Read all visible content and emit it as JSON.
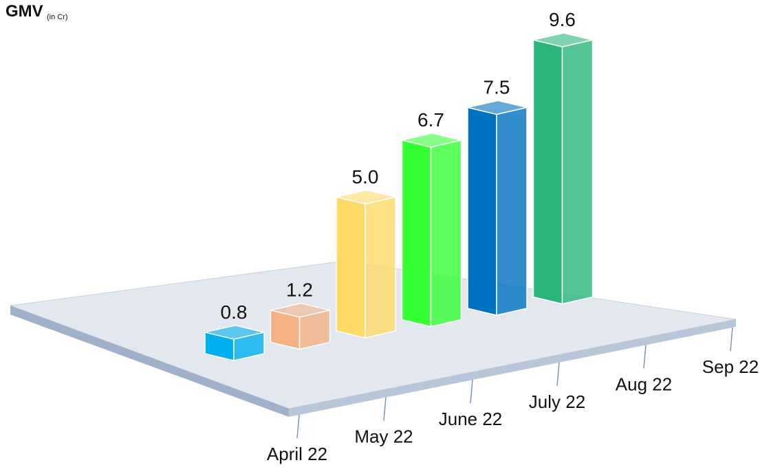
{
  "chart_data": {
    "type": "bar3d",
    "title": "GMV",
    "subtitle": "(in Cr)",
    "categories": [
      "April 22",
      "May 22",
      "June 22",
      "July 22",
      "Aug 22",
      "Sep 22"
    ],
    "values": [
      0.8,
      1.2,
      5.0,
      6.7,
      7.5,
      9.6
    ],
    "value_labels": [
      "0.8",
      "1.2",
      "5.0",
      "6.7",
      "7.5",
      "9.6"
    ],
    "colors": [
      "#00b0f0",
      "#f4b183",
      "#ffd966",
      "#33ff33",
      "#0070c0",
      "#2ab57a"
    ]
  }
}
